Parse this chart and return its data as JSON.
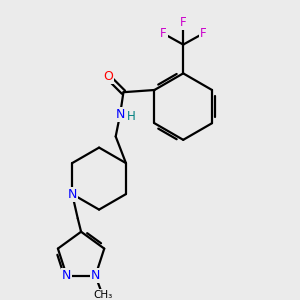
{
  "background_color": "#ebebeb",
  "atom_colors": {
    "N": "#0000ff",
    "O": "#ff0000",
    "F": "#cc00cc",
    "H": "#008080",
    "C": "#000000"
  },
  "bond_color": "#000000",
  "bond_width": 1.6,
  "figsize": [
    3.0,
    3.0
  ],
  "dpi": 100
}
